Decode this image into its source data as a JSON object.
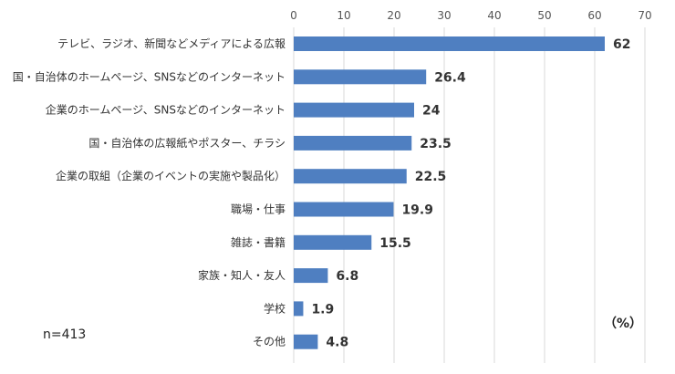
{
  "chart_data": {
    "type": "bar",
    "orientation": "horizontal",
    "categories": [
      "テレビ、ラジオ、新聞などメディアによる広報",
      "国・自治体のホームページ、SNSなどのインターネット",
      "企業のホームページ、SNSなどのインターネット",
      "国・自治体の広報紙やポスター、チラシ",
      "企業の取組（企業のイベントの実施や製品化）",
      "職場・仕事",
      "雑誌・書籍",
      "家族・知人・友人",
      "学校",
      "その他"
    ],
    "values": [
      62,
      26.4,
      24,
      23.5,
      22.5,
      19.9,
      15.5,
      6.8,
      1.9,
      4.8
    ],
    "value_labels": [
      "62",
      "26.4",
      "24",
      "23.5",
      "22.5",
      "19.9",
      "15.5",
      "6.8",
      "1.9",
      "4.8"
    ],
    "x_ticks": [
      "0",
      "10",
      "20",
      "30",
      "40",
      "50",
      "60",
      "70"
    ],
    "xlim": [
      0,
      70
    ],
    "x_axis_position": "top",
    "grid": true,
    "bar_color": "#4f7fc1",
    "grid_color": "#d9d9d9"
  },
  "notes": {
    "sample_size": "n=413",
    "unit": "（%）"
  }
}
